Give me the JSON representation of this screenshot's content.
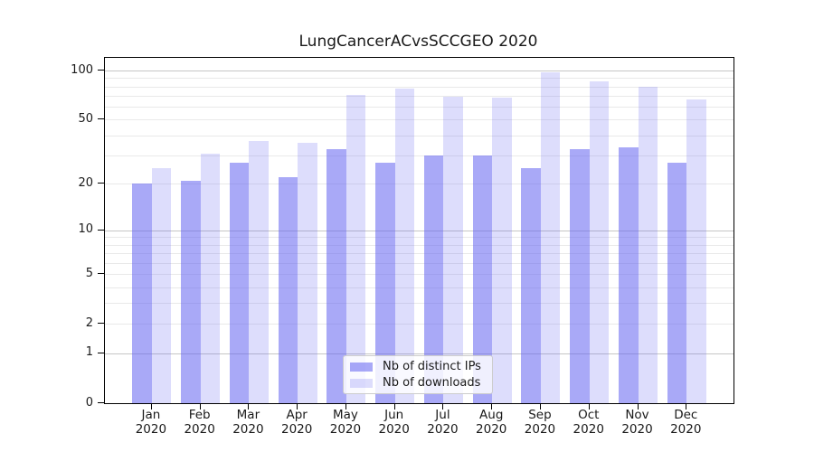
{
  "title": "LungCancerACvsSCCGEO 2020",
  "chart_data": {
    "type": "bar",
    "title": "LungCancerACvsSCCGEO 2020",
    "categories": [
      "Jan 2020",
      "Feb 2020",
      "Mar 2020",
      "Apr 2020",
      "May 2020",
      "Jun 2020",
      "Jul 2020",
      "Aug 2020",
      "Sep 2020",
      "Oct 2020",
      "Nov 2020",
      "Dec 2020"
    ],
    "x_tick_months": [
      "Jan",
      "Feb",
      "Mar",
      "Apr",
      "May",
      "Jun",
      "Jul",
      "Aug",
      "Sep",
      "Oct",
      "Nov",
      "Dec"
    ],
    "x_tick_year": "2020",
    "series": [
      {
        "name": "Nb of distinct IPs",
        "color": "rgba(99,99,241,0.55)",
        "values": [
          20,
          21,
          27,
          22,
          33,
          27,
          30,
          30,
          25,
          33,
          34,
          27
        ]
      },
      {
        "name": "Nb of downloads",
        "color": "rgba(99,99,241,0.22)",
        "values": [
          25,
          31,
          37,
          36,
          71,
          78,
          69,
          68,
          98,
          86,
          80,
          67
        ]
      }
    ],
    "xlabel": "",
    "ylabel": "",
    "y_scale": "log10(1+v)",
    "ylim": [
      0,
      120
    ],
    "y_tick_values": [
      0,
      1,
      2,
      5,
      10,
      20,
      50,
      100
    ],
    "y_tick_labels": [
      "0",
      "1",
      "2",
      "5",
      "10",
      "20",
      "50",
      "100"
    ],
    "grid": true,
    "major_grid_values": [
      1,
      10,
      100
    ],
    "minor_grid_values": [
      2,
      3,
      4,
      5,
      6,
      7,
      8,
      9,
      20,
      30,
      40,
      50,
      60,
      70,
      80,
      90
    ],
    "legend_position": "lower center"
  },
  "legend": {
    "items": [
      {
        "label": "Nb of distinct IPs"
      },
      {
        "label": "Nb of downloads"
      }
    ]
  },
  "colors": {
    "bar_dark": "rgba(99,99,241,0.55)",
    "bar_light": "rgba(99,99,241,0.22)",
    "grid_minor": "#e9e9e9",
    "grid_major": "#c6c6c6",
    "spine": "#000000",
    "text": "#1a1a1a",
    "legend_border": "#cccccc"
  }
}
